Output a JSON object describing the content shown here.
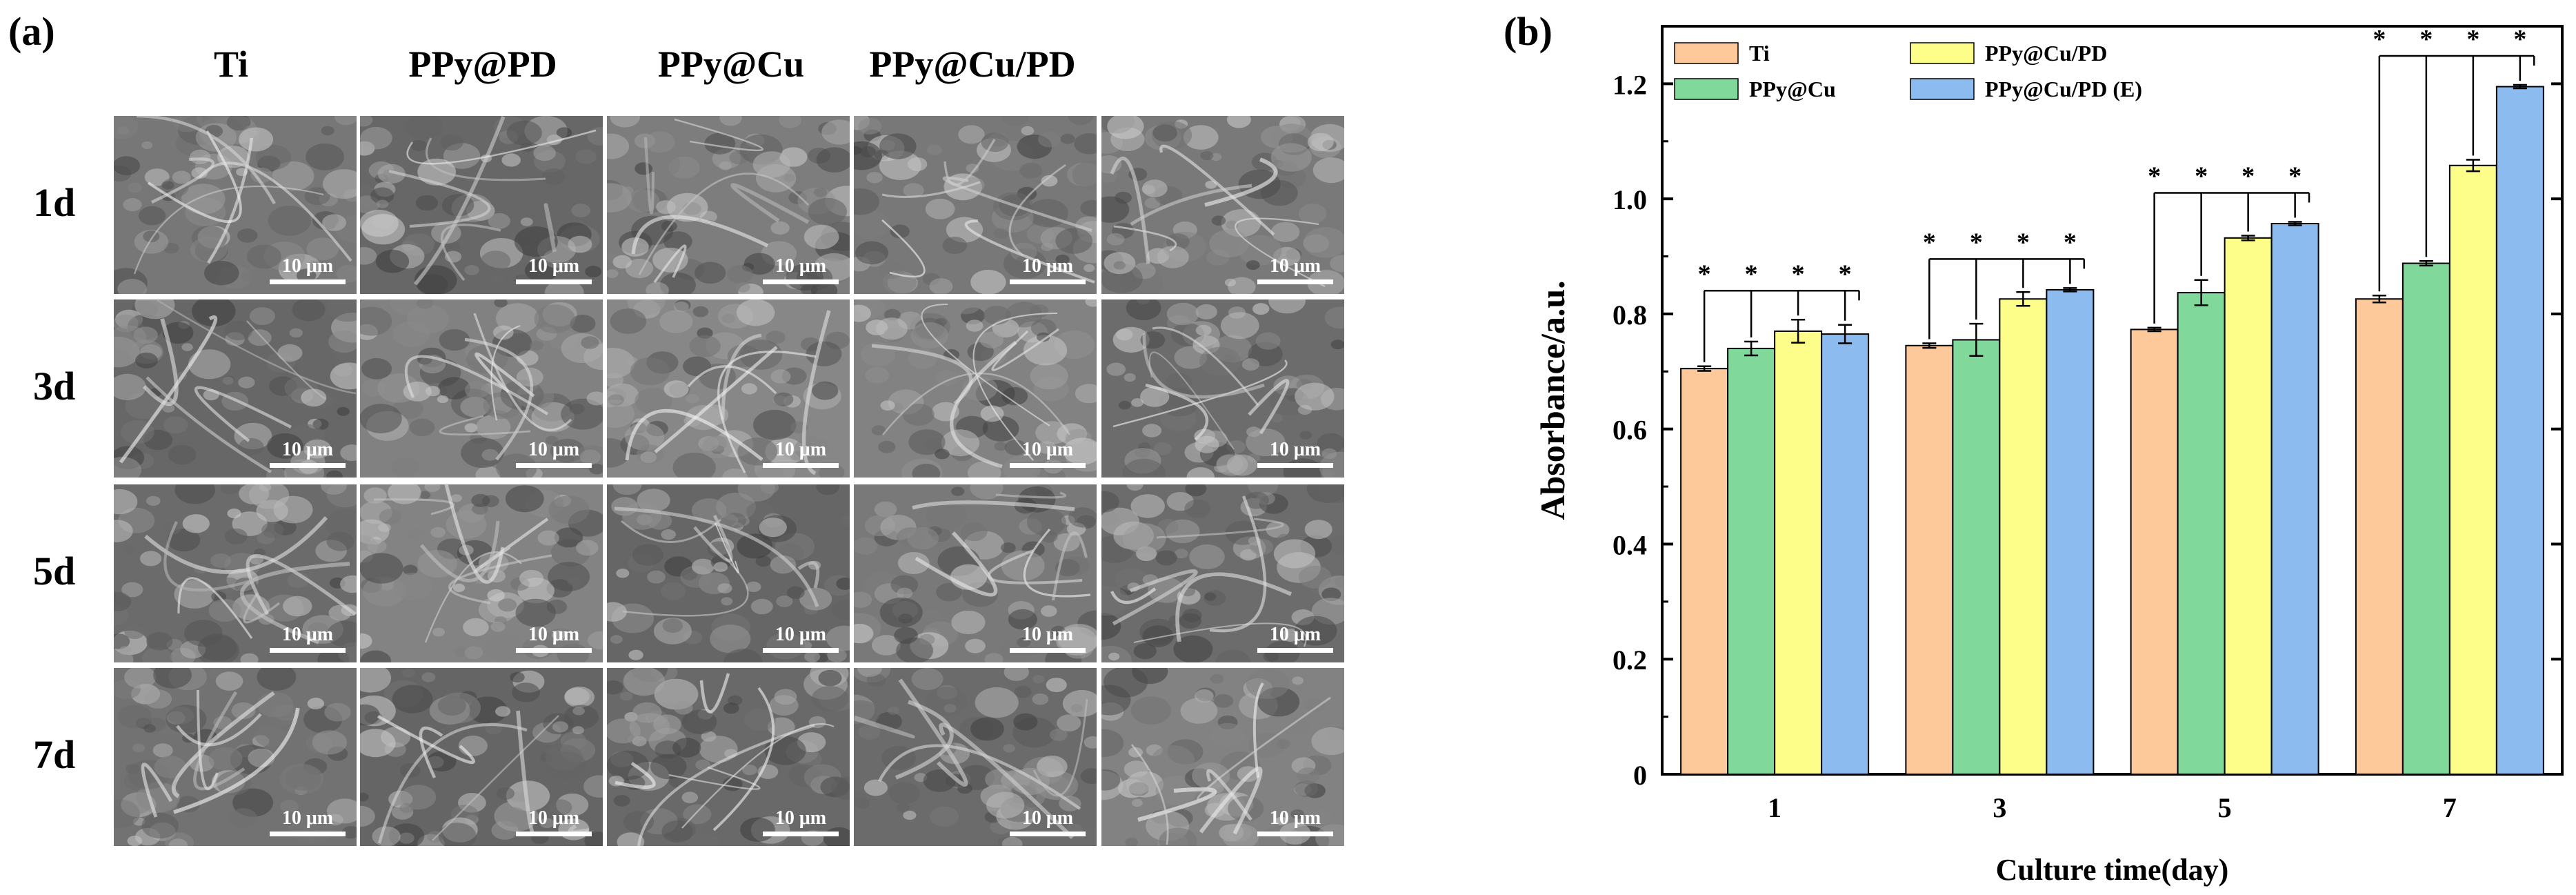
{
  "panel_a": {
    "label": "(a)",
    "columns": [
      "Ti",
      "PPy@PD",
      "PPy@Cu",
      "PPy@Cu/PD",
      ""
    ],
    "rows": [
      "1d",
      "3d",
      "5d",
      "7d"
    ],
    "scale_bar": "10 μm"
  },
  "colors": {
    "Ti": "#fdc89a",
    "PPy@Cu": "#80d99a",
    "PPy@Cu/PD": "#fdfd8a",
    "PPy@Cu/PD (E)": "#8cbbef"
  },
  "chart_data": {
    "type": "bar",
    "panel_label": "(b)",
    "title": "",
    "xlabel": "Culture time(day)",
    "ylabel": "Absorbance/a.u.",
    "ylim": [
      0,
      1.3
    ],
    "yticks": [
      "0",
      "0.2",
      "0.4",
      "0.6",
      "0.8",
      "1.0",
      "1.2"
    ],
    "categories": [
      "1",
      "3",
      "5",
      "7"
    ],
    "legend_position": "top-left",
    "series": [
      {
        "name": "Ti",
        "color": "#fdc89a",
        "values": [
          0.705,
          0.745,
          0.773,
          0.826
        ],
        "errors": [
          0.004,
          0.004,
          0.003,
          0.006
        ]
      },
      {
        "name": "PPy@Cu",
        "color": "#80d99a",
        "values": [
          0.74,
          0.755,
          0.837,
          0.888
        ],
        "errors": [
          0.012,
          0.028,
          0.022,
          0.004
        ]
      },
      {
        "name": "PPy@Cu/PD",
        "color": "#fdfd8a",
        "values": [
          0.77,
          0.826,
          0.932,
          1.058
        ],
        "errors": [
          0.02,
          0.012,
          0.004,
          0.01
        ]
      },
      {
        "name": "PPy@Cu/PD (E)",
        "color": "#8cbbef",
        "values": [
          0.765,
          0.842,
          0.957,
          1.195
        ],
        "errors": [
          0.016,
          0.003,
          0.003,
          0.003
        ]
      }
    ],
    "significance": "*"
  }
}
